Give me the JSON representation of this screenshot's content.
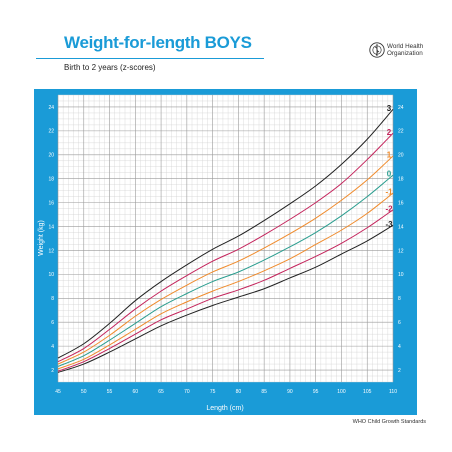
{
  "header": {
    "title": "Weight-for-length BOYS",
    "subtitle": "Birth to 2 years (z-scores)",
    "organization": "World Health Organization",
    "org_line1": "World Health",
    "org_line2": "Organization",
    "logo_icon": "who-emblem-icon",
    "footer": "WHO Child Growth Standards"
  },
  "colors": {
    "frame": "#1a9bd7",
    "plot_bg": "#ffffff",
    "grid_major": "#9a9a9a",
    "grid_minor": "#d3d3d3",
    "z_pm3": "#222222",
    "z_pm2": "#c4245c",
    "z_pm1": "#f08b2c",
    "z_0": "#2a9d8f"
  },
  "chart_data": {
    "type": "line",
    "title": "Weight-for-length BOYS",
    "subtitle": "Birth to 2 years (z-scores)",
    "xlabel": "Length (cm)",
    "ylabel": "Weight (kg)",
    "xlim": [
      45,
      110
    ],
    "ylim": [
      1,
      25
    ],
    "x_ticks": [
      "45",
      "50",
      "55",
      "60",
      "65",
      "70",
      "75",
      "80",
      "85",
      "90",
      "95",
      "100",
      "105",
      "110"
    ],
    "y_ticks": [
      "2",
      "4",
      "6",
      "8",
      "10",
      "12",
      "14",
      "16",
      "18",
      "20",
      "22",
      "24"
    ],
    "grid": true,
    "x": [
      45,
      50,
      55,
      60,
      65,
      70,
      75,
      80,
      85,
      90,
      95,
      100,
      105,
      110
    ],
    "series": [
      {
        "name": "3",
        "color": "#222222",
        "values": [
          3.0,
          4.2,
          5.9,
          7.8,
          9.4,
          10.8,
          12.1,
          13.2,
          14.5,
          15.9,
          17.4,
          19.2,
          21.3,
          23.8
        ]
      },
      {
        "name": "2",
        "color": "#c4245c",
        "values": [
          2.7,
          3.8,
          5.4,
          7.1,
          8.6,
          9.9,
          11.1,
          12.1,
          13.3,
          14.6,
          16.0,
          17.6,
          19.6,
          21.8
        ]
      },
      {
        "name": "1",
        "color": "#f08b2c",
        "values": [
          2.5,
          3.5,
          4.9,
          6.5,
          7.9,
          9.1,
          10.2,
          11.1,
          12.2,
          13.4,
          14.7,
          16.2,
          17.9,
          19.9
        ]
      },
      {
        "name": "0",
        "color": "#2a9d8f",
        "values": [
          2.3,
          3.2,
          4.5,
          5.9,
          7.3,
          8.4,
          9.4,
          10.2,
          11.2,
          12.3,
          13.5,
          14.9,
          16.5,
          18.3
        ]
      },
      {
        "name": "-1",
        "color": "#f08b2c",
        "values": [
          2.1,
          2.9,
          4.1,
          5.4,
          6.7,
          7.7,
          8.6,
          9.4,
          10.3,
          11.3,
          12.5,
          13.7,
          15.1,
          16.8
        ]
      },
      {
        "name": "-2",
        "color": "#c4245c",
        "values": [
          1.9,
          2.7,
          3.8,
          5.0,
          6.2,
          7.1,
          8.0,
          8.7,
          9.5,
          10.5,
          11.5,
          12.6,
          13.9,
          15.4
        ]
      },
      {
        "name": "-3",
        "color": "#222222",
        "values": [
          1.8,
          2.5,
          3.5,
          4.6,
          5.7,
          6.6,
          7.4,
          8.1,
          8.8,
          9.7,
          10.6,
          11.7,
          12.8,
          14.1
        ]
      }
    ]
  }
}
